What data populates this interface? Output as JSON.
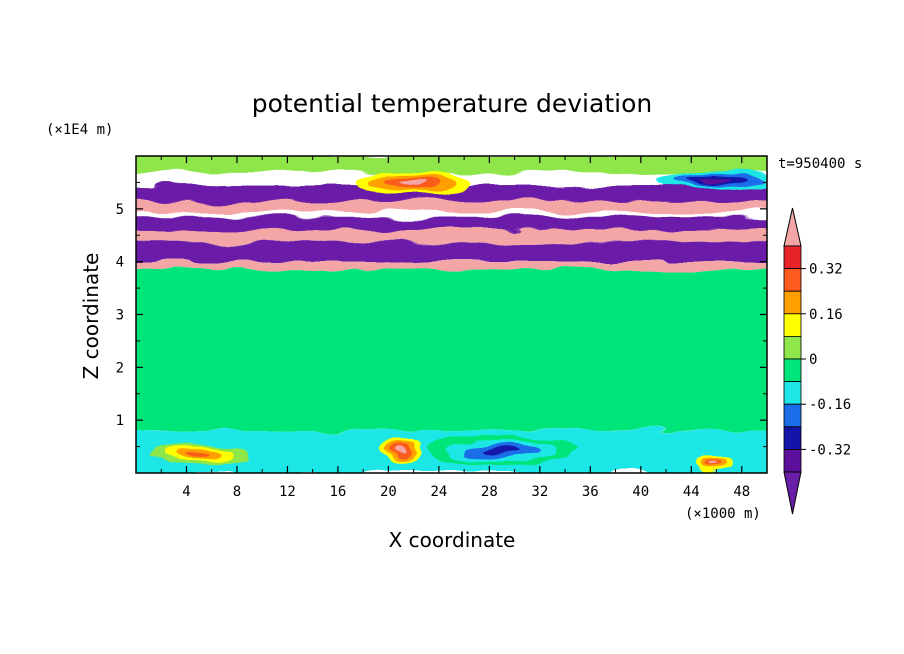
{
  "chart_data": {
    "type": "heatmap",
    "title": "potential temperature deviation",
    "xlabel": "X coordinate",
    "ylabel": "Z coordinate",
    "x_unit": "(×1000 m)",
    "y_unit": "(×1E4 m)",
    "time_label": "t=950400 s",
    "xlim": [
      0,
      50
    ],
    "ylim": [
      0,
      6
    ],
    "x_ticks": [
      4,
      8,
      12,
      16,
      20,
      24,
      28,
      32,
      36,
      40,
      44,
      48
    ],
    "y_ticks": [
      1,
      2,
      3,
      4,
      5
    ],
    "grid": false,
    "colorbar": {
      "placement": "right",
      "tick_labels": [
        "0.32",
        "0.16",
        "0",
        "-0.16",
        "-0.32"
      ],
      "tick_values": [
        0.32,
        0.16,
        0,
        -0.16,
        -0.32
      ],
      "levels": [
        {
          "min": 0.4,
          "max": null,
          "color": "#f4a6a6"
        },
        {
          "min": 0.32,
          "max": 0.4,
          "color": "#e8232a"
        },
        {
          "min": 0.24,
          "max": 0.32,
          "color": "#fb5b1e"
        },
        {
          "min": 0.16,
          "max": 0.24,
          "color": "#ffa000"
        },
        {
          "min": 0.08,
          "max": 0.16,
          "color": "#ffff00"
        },
        {
          "min": 0.0,
          "max": 0.08,
          "color": "#8ee64a"
        },
        {
          "min": -0.08,
          "max": 0.0,
          "color": "#00e57a"
        },
        {
          "min": -0.16,
          "max": -0.08,
          "color": "#1ee6e6"
        },
        {
          "min": -0.24,
          "max": -0.16,
          "color": "#1b6ee8"
        },
        {
          "min": -0.32,
          "max": -0.24,
          "color": "#1414a8"
        },
        {
          "min": -0.4,
          "max": -0.32,
          "color": "#5b0f9a"
        },
        {
          "min": null,
          "max": -0.4,
          "color": "#6a1fa8"
        }
      ]
    },
    "bands": [
      {
        "z0": 5.7,
        "z1": 6.0,
        "value": 0.04
      },
      {
        "z0": 5.1,
        "z1": 5.45,
        "value": -0.45
      },
      {
        "z0": 4.95,
        "z1": 5.15,
        "value": 0.45
      },
      {
        "z0": 4.6,
        "z1": 4.85,
        "value": -0.45
      },
      {
        "z0": 4.35,
        "z1": 4.6,
        "value": 0.45
      },
      {
        "z0": 4.0,
        "z1": 4.35,
        "value": -0.45
      },
      {
        "z0": 3.85,
        "z1": 4.0,
        "value": 0.45
      },
      {
        "z0": 0.8,
        "z1": 3.85,
        "value": -0.04
      },
      {
        "z0": 0.0,
        "z1": 0.8,
        "value": -0.1
      }
    ],
    "blobs": [
      {
        "x": 22,
        "z": 5.5,
        "rx": 4.5,
        "rz": 0.25,
        "value": 0.45
      },
      {
        "x": 46,
        "z": 5.55,
        "rx": 5,
        "rz": 0.2,
        "value": -0.35
      },
      {
        "x": 21,
        "z": 0.45,
        "rx": 1.5,
        "rz": 0.25,
        "value": 0.45
      },
      {
        "x": 46,
        "z": 0.2,
        "rx": 1.6,
        "rz": 0.15,
        "value": 0.45
      },
      {
        "x": 29,
        "z": 0.45,
        "rx": 6,
        "rz": 0.3,
        "value": -0.3
      },
      {
        "x": 5,
        "z": 0.35,
        "rx": 4,
        "rz": 0.2,
        "value": 0.3
      }
    ]
  }
}
